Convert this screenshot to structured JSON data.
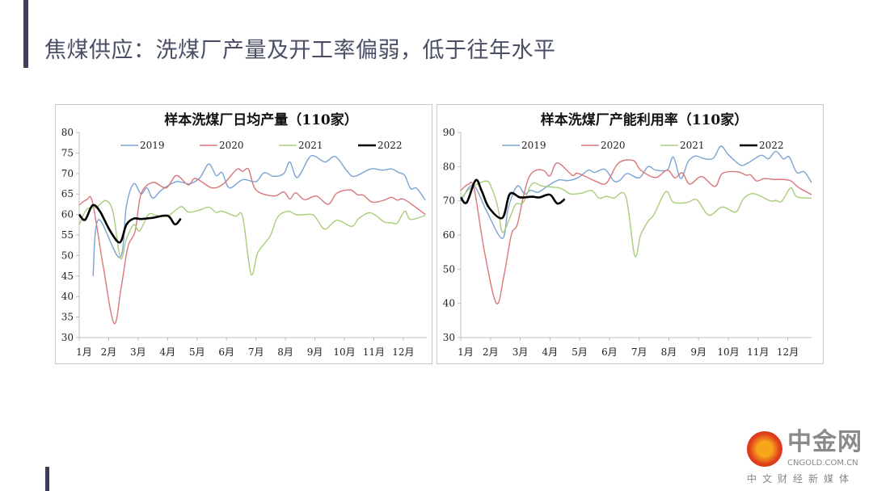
{
  "page": {
    "title": "焦煤供应：洗煤厂产量及开工率偏弱，低于往年水平"
  },
  "logo": {
    "main": "中金网",
    "url": "CNGOLD.COM.CN",
    "sub": "中文财经新媒体"
  },
  "colors": {
    "2019": "#7ba3d3",
    "2020": "#d9777a",
    "2021": "#a9cd7b",
    "2022": "#000000",
    "accent": "#3b3f57"
  },
  "chart_data": [
    {
      "type": "line",
      "title": "样本洗煤厂日均产量（110家）",
      "x_unit": "month (1 = 1月)",
      "categories": [
        "1月",
        "2月",
        "3月",
        "4月",
        "5月",
        "6月",
        "7月",
        "8月",
        "9月",
        "10月",
        "11月",
        "12月"
      ],
      "xlim": [
        1,
        12.8
      ],
      "ylim": [
        30,
        80
      ],
      "yticks": [
        30,
        35,
        40,
        45,
        50,
        55,
        60,
        65,
        70,
        75,
        80
      ],
      "legend": "top",
      "grid": false,
      "series": [
        {
          "name": "2019",
          "x": [
            1.47,
            1.65,
            2.38,
            2.6,
            2.85,
            3.1,
            3.3,
            3.5,
            3.8,
            4.3,
            4.75,
            5.1,
            5.4,
            5.65,
            5.85,
            6.1,
            6.55,
            7.0,
            7.28,
            7.6,
            7.95,
            8.15,
            8.4,
            8.8,
            9.0,
            9.35,
            9.7,
            10.1,
            10.35,
            10.9,
            11.3,
            11.6,
            11.85,
            12.05,
            12.25,
            12.45,
            12.75
          ],
          "y": [
            45,
            58.7,
            49.5,
            62,
            67.5,
            65,
            66.5,
            64,
            66,
            68,
            67.5,
            69,
            72.3,
            69.5,
            70.2,
            66.5,
            68.5,
            68,
            70.2,
            69.3,
            70,
            72.8,
            69,
            73.8,
            74.2,
            72.8,
            74.1,
            70.5,
            69.3,
            71.1,
            70.8,
            71.1,
            70.2,
            69.5,
            66.3,
            66.4,
            63.5
          ]
        },
        {
          "name": "2020",
          "x": [
            1.0,
            1.25,
            1.45,
            1.8,
            2.18,
            2.42,
            2.65,
            2.9,
            3.1,
            3.5,
            3.95,
            4.3,
            4.7,
            4.95,
            5.5,
            5.9,
            6.35,
            6.55,
            6.75,
            7.0,
            7.6,
            7.95,
            8.15,
            8.35,
            8.65,
            9.05,
            9.45,
            9.75,
            10.2,
            10.45,
            10.65,
            10.95,
            11.35,
            11.6,
            11.8,
            12.05,
            12.75
          ],
          "y": [
            62.3,
            63.6,
            63,
            48,
            33.5,
            42,
            52,
            56,
            65,
            67.8,
            66.5,
            69.5,
            67.2,
            68.8,
            66.5,
            67.5,
            71,
            70.5,
            71,
            66,
            64.5,
            65.5,
            63.8,
            65.3,
            63.6,
            64.5,
            62.5,
            65.2,
            66,
            64.8,
            64.7,
            63,
            63.5,
            64.2,
            63.5,
            63.6,
            60
          ]
        },
        {
          "name": "2021",
          "x": [
            1.0,
            1.25,
            1.6,
            1.9,
            2.15,
            2.4,
            2.6,
            2.85,
            3.05,
            3.35,
            3.6,
            4.0,
            4.45,
            4.7,
            5.05,
            5.4,
            5.65,
            5.85,
            6.3,
            6.55,
            6.83,
            7.05,
            7.3,
            7.5,
            7.75,
            8.1,
            8.4,
            8.9,
            9.1,
            9.35,
            9.75,
            10.25,
            10.5,
            10.9,
            11.35,
            11.6,
            11.8,
            12.05,
            12.25,
            12.75
          ],
          "y": [
            57.5,
            61.2,
            61.8,
            63.4,
            60.5,
            49.3,
            54,
            57.5,
            56,
            60,
            59.8,
            59.6,
            61.9,
            60.6,
            61,
            61.8,
            60.5,
            60.8,
            59.6,
            59.4,
            45.5,
            50.5,
            53,
            55,
            59.5,
            60.8,
            59.9,
            60,
            58.5,
            56.4,
            58.6,
            57.1,
            59.1,
            60.4,
            58.2,
            58,
            57.9,
            60.8,
            58.8,
            59.8
          ]
        },
        {
          "name": "2022",
          "x": [
            1.0,
            1.2,
            1.45,
            1.7,
            2.05,
            2.38,
            2.6,
            2.85,
            3.1,
            3.5,
            4.0,
            4.25,
            4.45
          ],
          "y": [
            60,
            58.7,
            62.2,
            60.8,
            56,
            53.2,
            57.5,
            59,
            58.9,
            59.2,
            59.7,
            57.6,
            59
          ]
        }
      ]
    },
    {
      "type": "line",
      "title": "样本洗煤厂产能利用率（110家）",
      "x_unit": "month (1 = 1月)",
      "categories": [
        "1月",
        "2月",
        "3月",
        "4月",
        "5月",
        "6月",
        "7月",
        "8月",
        "9月",
        "10月",
        "11月",
        "12月"
      ],
      "xlim": [
        1,
        12.8
      ],
      "ylim": [
        30,
        90
      ],
      "yticks": [
        30,
        40,
        50,
        60,
        70,
        80,
        90
      ],
      "legend": "top",
      "grid": false,
      "series": [
        {
          "name": "2019",
          "x": [
            1.0,
            1.42,
            1.87,
            2.4,
            2.6,
            2.9,
            3.15,
            3.35,
            3.6,
            3.95,
            4.3,
            4.6,
            4.95,
            5.3,
            5.5,
            5.85,
            6.15,
            6.35,
            6.6,
            7.0,
            7.3,
            7.55,
            7.95,
            8.15,
            8.4,
            8.65,
            8.9,
            9.2,
            9.5,
            9.75,
            10.0,
            10.4,
            10.65,
            11.1,
            11.35,
            11.6,
            11.85,
            12.05,
            12.3,
            12.55,
            12.8
          ],
          "y": [
            70,
            74.5,
            67,
            59,
            68,
            74.3,
            72,
            73.1,
            72.5,
            74.5,
            76.1,
            75.9,
            76.8,
            79,
            78.3,
            79.2,
            75.8,
            76,
            78,
            76.7,
            80,
            79,
            79.1,
            82.8,
            76.5,
            81.5,
            83.1,
            82.3,
            82.5,
            86,
            83.5,
            80.5,
            81,
            83.3,
            82.3,
            84.5,
            82.3,
            82.8,
            78.3,
            78.5,
            75.3
          ]
        },
        {
          "name": "2020",
          "x": [
            1.0,
            1.25,
            1.45,
            1.8,
            2.2,
            2.45,
            2.7,
            2.9,
            3.1,
            3.3,
            3.55,
            3.8,
            4.0,
            4.25,
            4.75,
            4.9,
            5.2,
            5.55,
            5.9,
            6.3,
            6.8,
            7.05,
            7.55,
            7.95,
            8.2,
            8.45,
            8.7,
            9.1,
            9.55,
            9.8,
            10.3,
            10.6,
            10.75,
            10.95,
            11.2,
            11.5,
            12.05,
            12.35,
            12.8
          ],
          "y": [
            73,
            74.8,
            73.5,
            55,
            40,
            48,
            60,
            63,
            71,
            77,
            79,
            78.8,
            77.3,
            81.1,
            77.5,
            78.1,
            77.1,
            75.7,
            75.2,
            81,
            81.8,
            79,
            76.8,
            79,
            76.7,
            78.2,
            74.9,
            77.1,
            74.2,
            78,
            78.5,
            77.5,
            77.6,
            75.8,
            76.5,
            76.3,
            76,
            74,
            71.8
          ]
        },
        {
          "name": "2021",
          "x": [
            1.0,
            1.3,
            1.85,
            2.05,
            2.25,
            2.4,
            2.65,
            2.85,
            3.1,
            3.4,
            3.75,
            4.3,
            4.5,
            4.7,
            5.05,
            5.4,
            5.65,
            5.9,
            6.15,
            6.55,
            6.85,
            7.05,
            7.3,
            7.5,
            7.9,
            8.15,
            8.6,
            8.85,
            9.0,
            9.35,
            9.8,
            10.25,
            10.5,
            10.85,
            11.4,
            11.6,
            11.8,
            12.1,
            12.3,
            12.8
          ],
          "y": [
            70.5,
            73.5,
            75.8,
            73.5,
            68,
            60.8,
            65,
            69,
            69.5,
            75,
            74.3,
            73.8,
            73,
            72,
            72.2,
            73,
            70.8,
            71.3,
            70.8,
            71.3,
            54,
            60,
            64,
            66,
            72.7,
            69.6,
            69.5,
            70.4,
            69.8,
            65.8,
            68.2,
            66.7,
            70.5,
            72.1,
            70,
            70.1,
            69.9,
            73.8,
            71.2,
            70.8
          ]
        },
        {
          "name": "2022",
          "x": [
            1.0,
            1.2,
            1.5,
            1.7,
            1.95,
            2.4,
            2.65,
            3.0,
            3.4,
            3.65,
            4.0,
            4.25,
            4.5
          ],
          "y": [
            71,
            69.5,
            76,
            73,
            68,
            65,
            72,
            71,
            71.2,
            71,
            71.8,
            69.2,
            70.5
          ]
        }
      ]
    }
  ]
}
